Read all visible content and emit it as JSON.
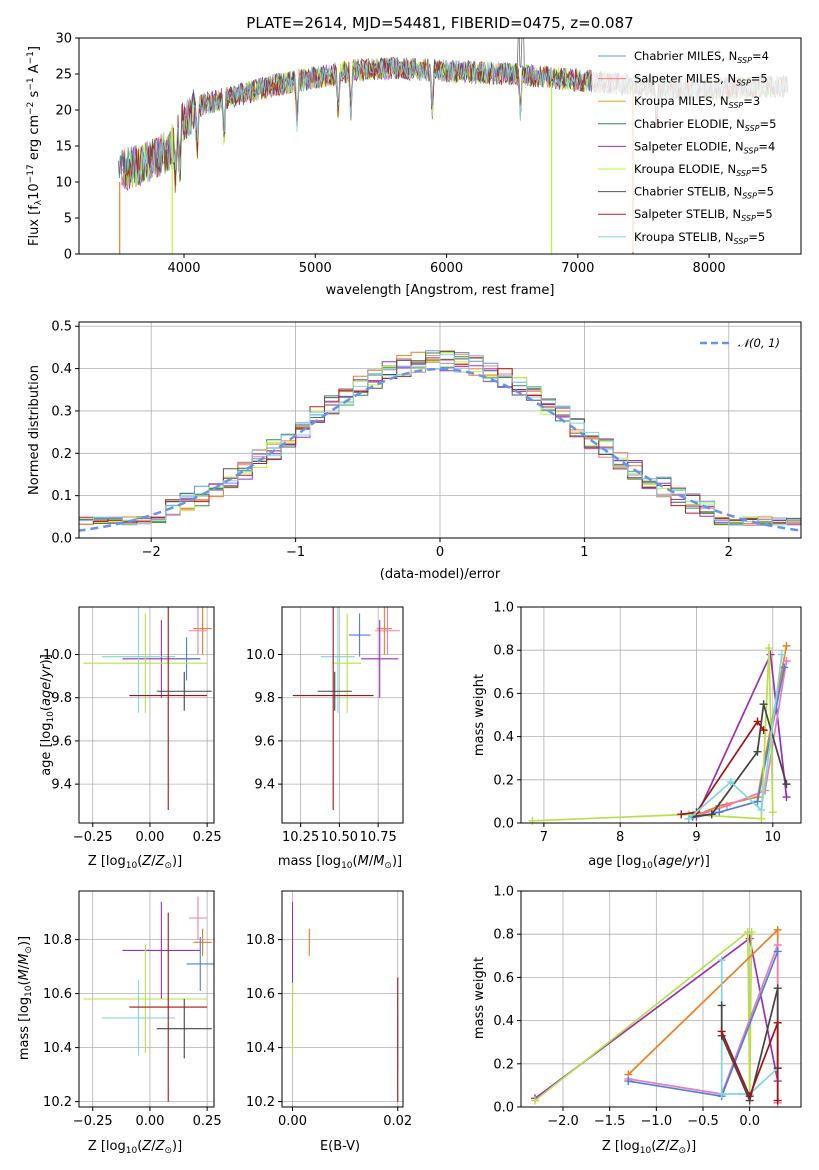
{
  "figure": {
    "title": "PLATE=2614, MJD=54481, FIBERID=0475, z=0.087"
  },
  "colors": {
    "Chabrier MILES": "#6495ed",
    "Salpeter MILES": "#f08080",
    "Kroupa MILES": "#daa520",
    "Chabrier ELODIE": "#2e8b57",
    "Salpeter ELODIE": "#9932cc",
    "Kroupa ELODIE": "#adff2f",
    "Chabrier STELIB": "#555555",
    "Salpeter STELIB": "#b22222",
    "Kroupa STELIB": "#87ceeb",
    "gauss": "#6495ed",
    "grid": "#b0b0b0",
    "orange": "#f07f20",
    "pink": "#e87fb8",
    "lime": "#b8e04a",
    "cyan": "#7fd8e0",
    "darkgray": "#444444",
    "darkred": "#a01515",
    "purple": "#9b2fb5",
    "blue": "#4f7fd8"
  },
  "chart_data": [
    {
      "id": "spectrum",
      "type": "line",
      "xlabel": "wavelength [Angstrom, rest frame]",
      "ylabel": "Flux [f_λ 10^-17 erg cm^-2 s^-1 A^-1]",
      "ylabel_parts": {
        "a": "Flux [f",
        "b": "λ",
        "c": "10",
        "d": "−17",
        "e": " erg cm",
        "f": "−2",
        "g": " s",
        "h": "−1",
        "i": " A",
        "j": "−1",
        "k": "]"
      },
      "xlim": [
        3200,
        8700
      ],
      "ylim": [
        0,
        30
      ],
      "xticks": [
        4000,
        5000,
        6000,
        7000,
        8000
      ],
      "yticks": [
        0,
        5,
        10,
        15,
        20,
        25,
        30
      ],
      "grid": false,
      "legend_position": "top-right",
      "continuum": {
        "x": [
          3500,
          3700,
          3900,
          4000,
          4100,
          4300,
          4500,
          4700,
          5000,
          5300,
          5600,
          5900,
          6200,
          6500,
          6800,
          7100,
          7400,
          7700,
          8000,
          8300,
          8600
        ],
        "y": [
          11.5,
          12.5,
          14.5,
          18.5,
          20.5,
          21.5,
          22.5,
          23.5,
          24.5,
          25.5,
          25.8,
          25.5,
          25.2,
          25.0,
          24.5,
          24.0,
          23.5,
          23.0,
          22.8,
          23.2,
          23.3
        ]
      },
      "series": [
        {
          "name": "Chabrier MILES, N_SSP=4",
          "label_main": "Chabrier MILES, N",
          "label_sub": "SSP",
          "label_end": "=4",
          "color": "#6495ed"
        },
        {
          "name": "Salpeter MILES, N_SSP=5",
          "label_main": "Salpeter MILES, N",
          "label_sub": "SSP",
          "label_end": "=5",
          "color": "#f08080"
        },
        {
          "name": "Kroupa MILES, N_SSP=3",
          "label_main": "Kroupa MILES, N",
          "label_sub": "SSP",
          "label_end": "=3",
          "color": "#daa520"
        },
        {
          "name": "Chabrier ELODIE, N_SSP=5",
          "label_main": "Chabrier ELODIE, N",
          "label_sub": "SSP",
          "label_end": "=5",
          "color": "#2e8b57"
        },
        {
          "name": "Salpeter ELODIE, N_SSP=4",
          "label_main": "Salpeter ELODIE, N",
          "label_sub": "SSP",
          "label_end": "=4",
          "color": "#9932cc"
        },
        {
          "name": "Kroupa ELODIE, N_SSP=5",
          "label_main": "Kroupa ELODIE, N",
          "label_sub": "SSP",
          "label_end": "=5",
          "color": "#adff2f"
        },
        {
          "name": "Chabrier STELIB, N_SSP=5",
          "label_main": "Chabrier STELIB, N",
          "label_sub": "SSP",
          "label_end": "=5",
          "color": "#555555"
        },
        {
          "name": "Salpeter STELIB, N_SSP=5",
          "label_main": "Salpeter STELIB, N",
          "label_sub": "SSP",
          "label_end": "=5",
          "color": "#b22222"
        },
        {
          "name": "Kroupa STELIB, N_SSP=5",
          "label_main": "Kroupa STELIB, N",
          "label_sub": "SSP",
          "label_end": "=5",
          "color": "#87ceeb"
        }
      ]
    },
    {
      "id": "residuals",
      "type": "line",
      "xlabel": "(data-model)/error",
      "ylabel": "Normed distribution",
      "xlim": [
        -2.5,
        2.5
      ],
      "ylim": [
        0,
        0.51
      ],
      "xticks": [
        -2,
        -1,
        0,
        1,
        2
      ],
      "xtick_labels": [
        "−2",
        "−1",
        "0",
        "1",
        "2"
      ],
      "yticks": [
        0.0,
        0.1,
        0.2,
        0.3,
        0.4,
        0.5
      ],
      "ytick_labels": [
        "0.0",
        "0.1",
        "0.2",
        "0.3",
        "0.4",
        "0.5"
      ],
      "grid": true,
      "legend_position": "top-right",
      "gauss_label": "𝒩(0, 1)"
    },
    {
      "id": "age_vs_Z",
      "type": "scatter",
      "xlabel": "Z [log10(Z/Z⊙)]",
      "ylabel": "age [log10(age/yr)]",
      "xlim": [
        -0.31,
        0.28
      ],
      "ylim": [
        9.22,
        10.22
      ],
      "xticks": [
        -0.25,
        0.0,
        0.25
      ],
      "xtick_labels": [
        "−0.25",
        "0.00",
        "0.25"
      ],
      "yticks": [
        9.4,
        9.6,
        9.8,
        10.0
      ],
      "ytick_labels": [
        "9.4",
        "9.6",
        "9.8",
        "10.0"
      ],
      "grid": true,
      "points": [
        {
          "x": 0.23,
          "xerr": 0.04,
          "y": 10.12,
          "yerr": 0.12,
          "color": "#f07f20"
        },
        {
          "x": 0.21,
          "xerr": 0.04,
          "y": 10.11,
          "yerr": 0.11,
          "color": "#e87fb8"
        },
        {
          "x": 0.05,
          "xerr": 0.17,
          "y": 9.98,
          "yerr": 0.18,
          "color": "#9b2fb5"
        },
        {
          "x": 0.16,
          "xerr": 0.06,
          "y": 9.98,
          "yerr": 0.1,
          "color": "#4f7fd8"
        },
        {
          "x": -0.05,
          "xerr": 0.16,
          "y": 9.99,
          "yerr": 0.26,
          "color": "#7fd8e0"
        },
        {
          "x": -0.02,
          "xerr": 0.27,
          "y": 9.96,
          "yerr": 0.23,
          "color": "#b8e04a"
        },
        {
          "x": 0.15,
          "xerr": 0.12,
          "y": 9.83,
          "yerr": 0.09,
          "color": "#444444"
        },
        {
          "x": 0.08,
          "xerr": 0.17,
          "y": 9.81,
          "yerr": 0.53,
          "color": "#a01515"
        }
      ]
    },
    {
      "id": "age_vs_mass",
      "type": "scatter",
      "xlabel": "mass [log10(M/M⊙)]",
      "ylabel": "",
      "xlim": [
        10.13,
        10.91
      ],
      "ylim": [
        9.22,
        10.22
      ],
      "xticks": [
        10.25,
        10.5,
        10.75
      ],
      "xtick_labels": [
        "10.25",
        "10.50",
        "10.75"
      ],
      "yticks": [
        9.4,
        9.6,
        9.8,
        10.0
      ],
      "ytick_labels": [
        "9.4",
        "9.6",
        "9.8",
        "10.0"
      ],
      "grid": true,
      "points": [
        {
          "x": 10.79,
          "xerr": 0.05,
          "y": 10.12,
          "yerr": 0.12,
          "color": "#f07f20"
        },
        {
          "x": 10.81,
          "xerr": 0.08,
          "y": 10.11,
          "yerr": 0.11,
          "color": "#e87fb8"
        },
        {
          "x": 10.76,
          "xerr": 0.12,
          "y": 9.98,
          "yerr": 0.18,
          "color": "#9b2fb5"
        },
        {
          "x": 10.63,
          "xerr": 0.07,
          "y": 10.09,
          "yerr": 0.1,
          "color": "#4f7fd8"
        },
        {
          "x": 10.49,
          "xerr": 0.11,
          "y": 9.99,
          "yerr": 0.26,
          "color": "#7fd8e0"
        },
        {
          "x": 10.55,
          "xerr": 0.09,
          "y": 9.96,
          "yerr": 0.23,
          "color": "#b8e04a"
        },
        {
          "x": 10.47,
          "xerr": 0.11,
          "y": 9.83,
          "yerr": 0.09,
          "color": "#444444"
        },
        {
          "x": 10.46,
          "xerr": 0.26,
          "y": 9.81,
          "yerr": 0.53,
          "color": "#a01515"
        }
      ]
    },
    {
      "id": "weight_vs_age",
      "type": "line",
      "xlabel": "age [log10(age/yr)]",
      "ylabel": "mass weight",
      "xlim": [
        6.7,
        10.37
      ],
      "ylim": [
        0,
        1
      ],
      "xticks": [
        7,
        8,
        9,
        10
      ],
      "yticks": [
        0.0,
        0.2,
        0.4,
        0.6,
        0.8,
        1.0
      ],
      "ytick_labels": [
        "0.0",
        "0.2",
        "0.4",
        "0.6",
        "0.8",
        "1.0"
      ],
      "grid": true,
      "series": [
        {
          "color": "#9b2fb5",
          "x": [
            9.0,
            9.97,
            10.18
          ],
          "y": [
            0.03,
            0.78,
            0.12
          ]
        },
        {
          "color": "#f07f20",
          "x": [
            8.9,
            9.3,
            9.8,
            10.18
          ],
          "y": [
            0.02,
            0.08,
            0.12,
            0.82
          ]
        },
        {
          "color": "#e87fb8",
          "x": [
            8.9,
            9.4,
            9.9,
            10.18
          ],
          "y": [
            0.02,
            0.08,
            0.15,
            0.75
          ]
        },
        {
          "color": "#4f7fd8",
          "x": [
            8.9,
            9.3,
            9.8,
            10.15
          ],
          "y": [
            0.02,
            0.05,
            0.1,
            0.72
          ]
        },
        {
          "color": "#b8e04a",
          "x": [
            6.85,
            8.9,
            9.85,
            9.95,
            10.0
          ],
          "y": [
            0.01,
            0.04,
            0.02,
            0.81,
            0.05
          ]
        },
        {
          "color": "#444444",
          "x": [
            8.95,
            9.2,
            9.8,
            9.88,
            10.18
          ],
          "y": [
            0.03,
            0.04,
            0.33,
            0.55,
            0.18
          ]
        },
        {
          "color": "#a01515",
          "x": [
            8.8,
            9.0,
            9.8,
            9.88
          ],
          "y": [
            0.04,
            0.05,
            0.47,
            0.43
          ]
        },
        {
          "color": "#7fd8e0",
          "x": [
            8.9,
            9.45,
            9.85,
            10.12
          ],
          "y": [
            0.02,
            0.19,
            0.06,
            0.78
          ]
        }
      ]
    },
    {
      "id": "mass_vs_Z",
      "type": "scatter",
      "xlabel": "Z [log10(Z/Z⊙)]",
      "ylabel": "mass [log10(M/M⊙)]",
      "xlim": [
        -0.31,
        0.28
      ],
      "ylim": [
        10.18,
        10.98
      ],
      "xticks": [
        -0.25,
        0.0,
        0.25
      ],
      "xtick_labels": [
        "−0.25",
        "0.00",
        "0.25"
      ],
      "yticks": [
        10.2,
        10.4,
        10.6,
        10.8
      ],
      "ytick_labels": [
        "10.2",
        "10.4",
        "10.6",
        "10.8"
      ],
      "grid": true,
      "points": [
        {
          "x": 0.23,
          "xerr": 0.04,
          "y": 10.79,
          "yerr": 0.05,
          "color": "#f07f20"
        },
        {
          "x": 0.21,
          "xerr": 0.04,
          "y": 10.88,
          "yerr": 0.08,
          "color": "#e87fb8"
        },
        {
          "x": 0.05,
          "xerr": 0.17,
          "y": 10.76,
          "yerr": 0.18,
          "color": "#9b2fb5"
        },
        {
          "x": 0.22,
          "xerr": 0.06,
          "y": 10.71,
          "yerr": 0.1,
          "color": "#4f7fd8"
        },
        {
          "x": -0.05,
          "xerr": 0.16,
          "y": 10.51,
          "yerr": 0.14,
          "color": "#7fd8e0"
        },
        {
          "x": -0.02,
          "xerr": 0.27,
          "y": 10.58,
          "yerr": 0.2,
          "color": "#b8e04a"
        },
        {
          "x": 0.15,
          "xerr": 0.12,
          "y": 10.47,
          "yerr": 0.11,
          "color": "#444444"
        },
        {
          "x": 0.08,
          "xerr": 0.17,
          "y": 10.55,
          "yerr": 0.35,
          "color": "#a01515"
        }
      ]
    },
    {
      "id": "mass_vs_ebv",
      "type": "scatter",
      "xlabel": "E(B-V)",
      "ylabel": "",
      "xlim": [
        -0.002,
        0.021
      ],
      "ylim": [
        10.18,
        10.98
      ],
      "xticks": [
        0.0,
        0.02
      ],
      "xtick_labels": [
        "0.00",
        "0.02"
      ],
      "yticks": [
        10.2,
        10.4,
        10.6,
        10.8
      ],
      "ytick_labels": [
        "10.2",
        "10.4",
        "10.6",
        "10.8"
      ],
      "grid": true,
      "points": [
        {
          "x": 0.0,
          "y": 10.76,
          "yerr": 0.18,
          "color": "#9b2fb5"
        },
        {
          "x": 0.0,
          "y": 10.51,
          "yerr": 0.13,
          "color": "#b8e04a"
        },
        {
          "x": 0.0032,
          "y": 10.79,
          "yerr": 0.05,
          "color": "#f07f20"
        },
        {
          "x": 0.02,
          "y": 10.42,
          "yerr": 0.1,
          "color": "#7fd8e0"
        },
        {
          "x": 0.02,
          "y": 10.43,
          "yerr": 0.23,
          "color": "#a01515"
        }
      ]
    },
    {
      "id": "weight_vs_Z",
      "type": "line",
      "xlabel": "Z [log10(Z/Z⊙)]",
      "ylabel": "mass weight",
      "xlim": [
        -2.45,
        0.55
      ],
      "ylim": [
        0,
        1
      ],
      "xticks": [
        -2.0,
        -1.5,
        -1.0,
        -0.5,
        0.0
      ],
      "xtick_labels": [
        "−2.0",
        "−1.5",
        "−1.0",
        "−0.5",
        "0.0"
      ],
      "yticks": [
        0.0,
        0.2,
        0.4,
        0.6,
        0.8,
        1.0
      ],
      "ytick_labels": [
        "0.0",
        "0.2",
        "0.4",
        "0.6",
        "0.8",
        "1.0"
      ],
      "grid": true,
      "series": [
        {
          "color": "#9b2fb5",
          "x": [
            -2.3,
            0.0,
            0.3
          ],
          "y": [
            0.04,
            0.78,
            0.12
          ]
        },
        {
          "color": "#b8e04a",
          "x": [
            -2.3,
            -0.02,
            0.0,
            0.02
          ],
          "y": [
            0.03,
            0.81,
            0.05,
            0.81
          ]
        },
        {
          "color": "#f07f20",
          "x": [
            -1.3,
            0.3,
            0.3
          ],
          "y": [
            0.15,
            0.82,
            0.02
          ]
        },
        {
          "color": "#e87fb8",
          "x": [
            -1.3,
            -0.3,
            0.3,
            0.3
          ],
          "y": [
            0.13,
            0.06,
            0.75,
            0.02
          ]
        },
        {
          "color": "#4f7fd8",
          "x": [
            -1.3,
            -0.3,
            0.3
          ],
          "y": [
            0.12,
            0.05,
            0.72
          ]
        },
        {
          "color": "#7fd8e0",
          "x": [
            -0.3,
            -0.3,
            0.0,
            0.3
          ],
          "y": [
            0.68,
            0.06,
            0.06,
            0.18
          ]
        },
        {
          "color": "#444444",
          "x": [
            -0.3,
            -0.3,
            0.0,
            0.3,
            0.3
          ],
          "y": [
            0.47,
            0.33,
            0.03,
            0.55,
            0.18
          ]
        },
        {
          "color": "#a01515",
          "x": [
            -0.3,
            0.0,
            0.3,
            0.3
          ],
          "y": [
            0.35,
            0.05,
            0.39,
            0.03
          ]
        }
      ]
    }
  ]
}
